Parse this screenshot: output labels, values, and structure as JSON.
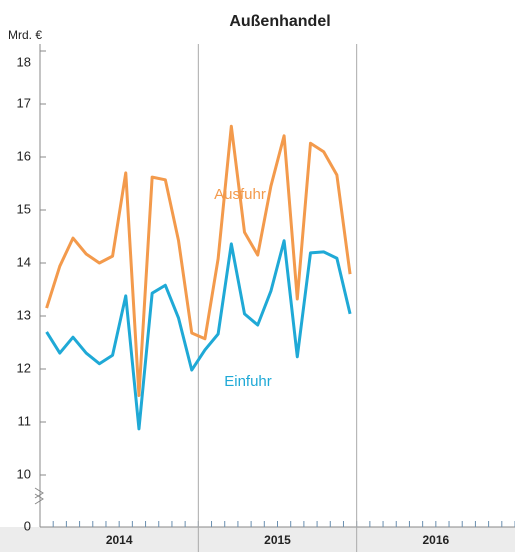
{
  "chart_data": {
    "type": "line",
    "title": "Außenhandel",
    "y_label": "Mrd. €",
    "categories": [
      null,
      null,
      null,
      null,
      null,
      null,
      null,
      null,
      null,
      null,
      null,
      null,
      null,
      null,
      null,
      null,
      null,
      null,
      null,
      null,
      null,
      null,
      null,
      null,
      null,
      null,
      null,
      null,
      null,
      null,
      null,
      null,
      null,
      null,
      null,
      null
    ],
    "x_group_labels": [
      "2014",
      "2015",
      "2016"
    ],
    "series": [
      {
        "name": "Ausfuhr",
        "color": "#f39a4c",
        "values": [
          13.15,
          13.94,
          14.47,
          14.17,
          14.0,
          14.13,
          15.7,
          11.5,
          15.62,
          15.57,
          14.42,
          12.68,
          12.57,
          14.08,
          16.58,
          14.58,
          14.15,
          15.45,
          16.4,
          13.32,
          16.26,
          16.1,
          15.66,
          13.79,
          null,
          null,
          null,
          null,
          null,
          null,
          null,
          null,
          null,
          null,
          null,
          null
        ]
      },
      {
        "name": "Einfuhr",
        "color": "#1fa9d6",
        "values": [
          12.7,
          12.3,
          12.6,
          12.3,
          12.1,
          12.26,
          13.38,
          10.87,
          13.43,
          13.58,
          12.96,
          11.98,
          12.36,
          12.66,
          14.36,
          13.04,
          12.83,
          13.47,
          14.42,
          12.23,
          14.19,
          14.21,
          14.09,
          13.04,
          null,
          null,
          null,
          null,
          null,
          null,
          null,
          null,
          null,
          null,
          null,
          null
        ]
      }
    ],
    "ylim": [
      10,
      18
    ],
    "yticks": [
      0,
      10,
      11,
      12,
      13,
      14,
      15,
      16,
      17,
      18
    ],
    "axis_break": true
  }
}
